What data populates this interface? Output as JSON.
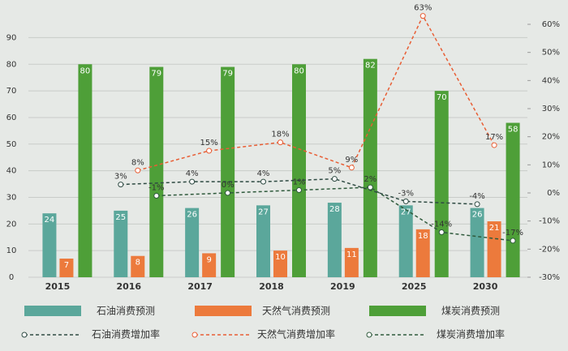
{
  "chart_data": {
    "type": "bar",
    "categories": [
      "2015",
      "2016",
      "2017",
      "2018",
      "2019",
      "2025",
      "2030"
    ],
    "series": [
      {
        "name": "石油消费预测",
        "type": "bar",
        "color": "#5ba79b",
        "values": [
          24,
          25,
          26,
          27,
          28,
          27,
          26
        ]
      },
      {
        "name": "天然气消费预测",
        "type": "bar",
        "color": "#ec7a3c",
        "values": [
          7,
          8,
          9,
          10,
          11,
          18,
          21
        ]
      },
      {
        "name": "煤炭消费预测",
        "type": "bar",
        "color": "#4e9f38",
        "values": [
          80,
          79,
          79,
          80,
          82,
          70,
          58
        ]
      },
      {
        "name": "石油消费增加率",
        "type": "line",
        "axis": "y2",
        "color": "#2e4a42",
        "values": [
          null,
          3,
          4,
          4,
          5,
          -3,
          -4
        ],
        "value_labels": [
          null,
          "3%",
          "4%",
          "4%",
          "5%",
          "-3%",
          "-4%"
        ]
      },
      {
        "name": "天然气消费增加率",
        "type": "line",
        "axis": "y2",
        "color": "#e85e35",
        "values": [
          null,
          8,
          15,
          18,
          9,
          63,
          17
        ],
        "value_labels": [
          null,
          "8%",
          "15%",
          "18%",
          "9%",
          "63%",
          "17%"
        ]
      },
      {
        "name": "煤炭消费增加率",
        "type": "line",
        "axis": "y2",
        "color": "#2f5a3c",
        "values": [
          null,
          -1,
          0,
          1,
          2,
          -14,
          -17
        ],
        "value_labels": [
          null,
          "-1%",
          "0%",
          "1%",
          "2%",
          "-14%",
          "-17%"
        ]
      }
    ],
    "ylim": [
      0,
      95
    ],
    "yticks": [
      0,
      10,
      20,
      30,
      40,
      50,
      60,
      70,
      80,
      90
    ],
    "y2lim": [
      -30,
      60
    ],
    "y2ticks": [
      {
        "value": -30,
        "label": "-30%"
      },
      {
        "value": -20,
        "label": "-20%"
      },
      {
        "value": -10,
        "label": "-10%"
      },
      {
        "value": 0,
        "label": "0%"
      },
      {
        "value": 10,
        "label": "10%"
      },
      {
        "value": 20,
        "label": "20%"
      },
      {
        "value": 30,
        "label": "30%"
      },
      {
        "value": 40,
        "label": "40%"
      },
      {
        "value": 50,
        "label": "50%"
      },
      {
        "value": 60,
        "label": "60%"
      }
    ],
    "grid": true
  }
}
